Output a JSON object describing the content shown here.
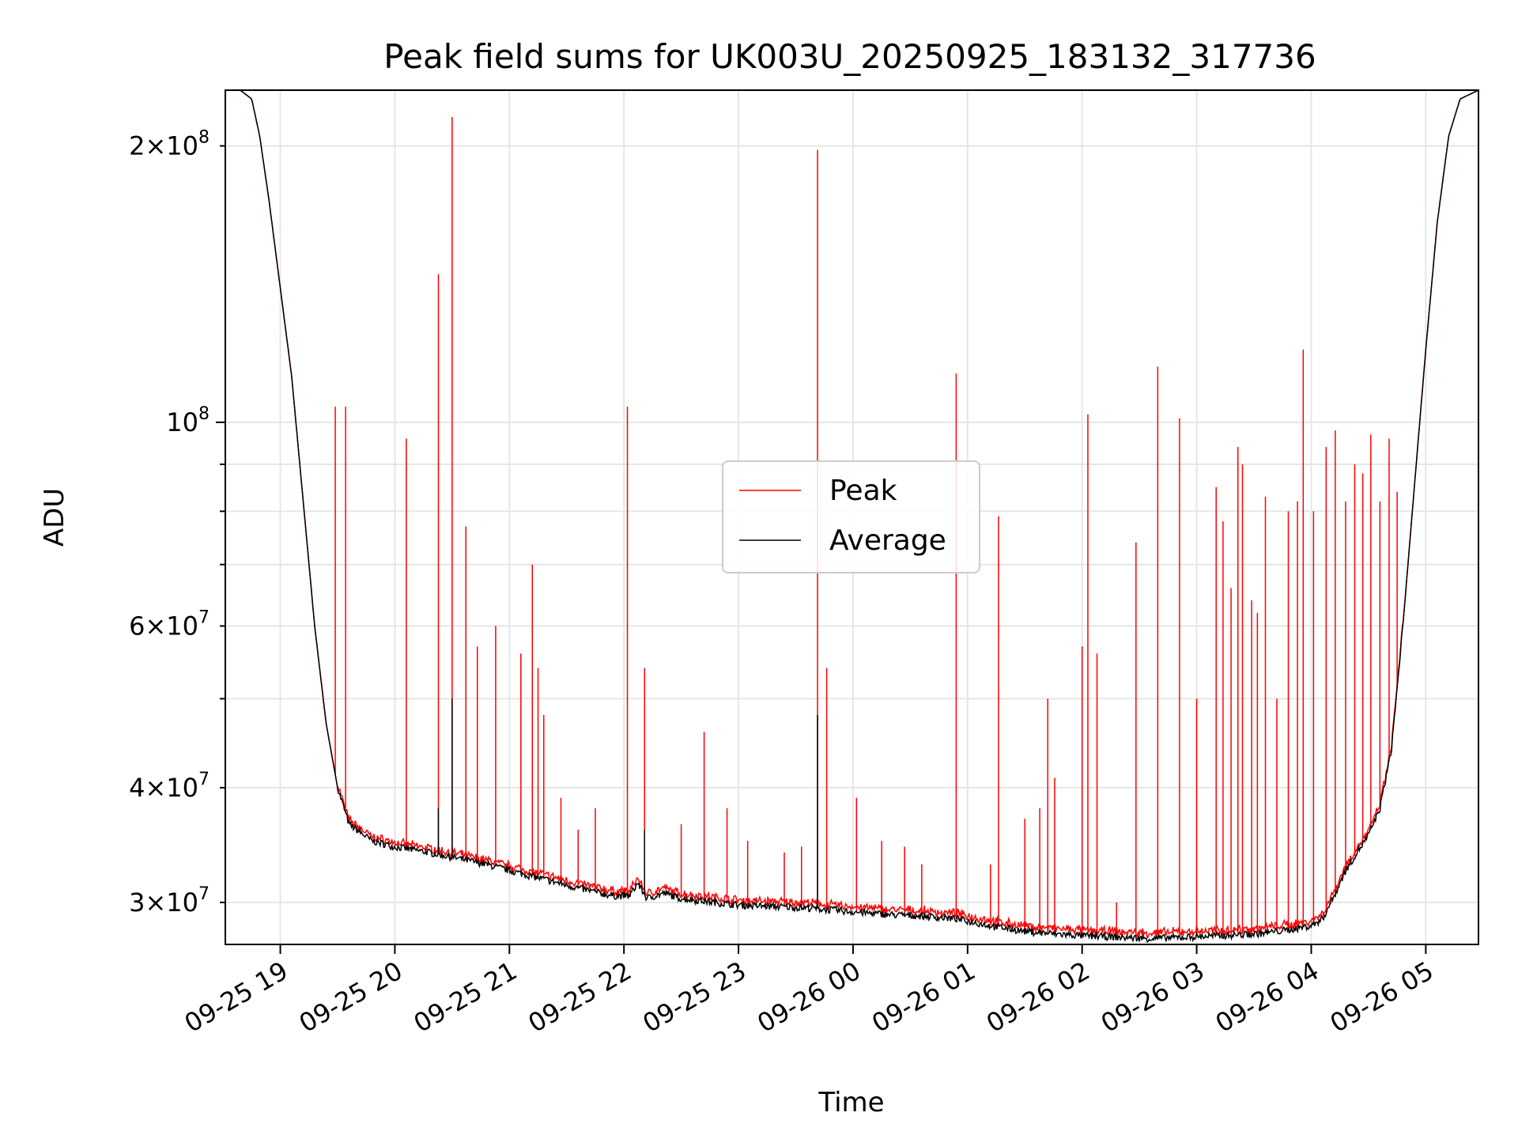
{
  "chart_data": {
    "type": "line",
    "title": "Peak field sums for UK003U_20250925_183132_317736",
    "xlabel": "Time",
    "ylabel": "ADU",
    "yscale": "log",
    "ylim": [
      27000000,
      230000000
    ],
    "xlim_hours": [
      18.52,
      29.46
    ],
    "grid": true,
    "legend": {
      "loc": "center",
      "entries": [
        "Peak",
        "Average"
      ]
    },
    "x_ticks": [
      {
        "hour": 19,
        "label": "09-25 19"
      },
      {
        "hour": 20,
        "label": "09-25 20"
      },
      {
        "hour": 21,
        "label": "09-25 21"
      },
      {
        "hour": 22,
        "label": "09-25 22"
      },
      {
        "hour": 23,
        "label": "09-25 23"
      },
      {
        "hour": 24,
        "label": "09-26 00"
      },
      {
        "hour": 25,
        "label": "09-26 01"
      },
      {
        "hour": 26,
        "label": "09-26 02"
      },
      {
        "hour": 27,
        "label": "09-26 03"
      },
      {
        "hour": 28,
        "label": "09-26 04"
      },
      {
        "hour": 29,
        "label": "09-26 05"
      }
    ],
    "y_major_ticks": [
      {
        "value": 100000000,
        "mantissa": "",
        "exp": "8"
      }
    ],
    "y_minor_labeled_ticks": [
      {
        "value": 30000000,
        "mantissa": "3",
        "exp": "7"
      },
      {
        "value": 40000000,
        "mantissa": "4",
        "exp": "7"
      },
      {
        "value": 60000000,
        "mantissa": "6",
        "exp": "7"
      },
      {
        "value": 200000000,
        "mantissa": "2",
        "exp": "8"
      }
    ],
    "y_minor_unlabeled_ticks": [
      50000000,
      70000000,
      80000000,
      90000000
    ],
    "series": [
      {
        "name": "Average",
        "color": "#000000",
        "x_hours": [
          18.52,
          18.65,
          18.75,
          18.82,
          18.9,
          19.0,
          19.1,
          19.2,
          19.3,
          19.4,
          19.5,
          19.6,
          19.8,
          20.0,
          20.3,
          20.5,
          20.8,
          21.0,
          21.3,
          21.6,
          21.9,
          22.05,
          22.12,
          22.2,
          22.35,
          22.5,
          22.8,
          23.0,
          23.3,
          23.6,
          24.0,
          24.3,
          24.6,
          24.9,
          25.2,
          25.5,
          25.8,
          26.0,
          26.3,
          26.6,
          26.9,
          27.2,
          27.5,
          27.8,
          28.0,
          28.1,
          28.2,
          28.3,
          28.4,
          28.5,
          28.6,
          28.7,
          28.8,
          28.9,
          29.0,
          29.1,
          29.2,
          29.3,
          29.46
        ],
        "values": [
          230000000,
          230000000,
          225000000,
          205000000,
          175000000,
          140000000,
          112000000,
          82000000,
          60000000,
          47000000,
          40000000,
          36500000,
          35000000,
          34500000,
          34000000,
          33600000,
          33000000,
          32500000,
          31800000,
          31100000,
          30500000,
          30500000,
          31500000,
          30300000,
          30700000,
          30300000,
          30000000,
          29800000,
          29700000,
          29600000,
          29300000,
          29100000,
          29000000,
          28800000,
          28300000,
          27900000,
          27700000,
          27600000,
          27500000,
          27400000,
          27500000,
          27600000,
          27700000,
          28000000,
          28300000,
          28800000,
          30500000,
          32500000,
          34000000,
          35500000,
          38000000,
          44000000,
          60000000,
          85000000,
          120000000,
          165000000,
          205000000,
          225000000,
          230000000
        ]
      },
      {
        "name": "Peak",
        "color": "#ff0000",
        "baseline_offset": 300000,
        "spikes": [
          [
            19.48,
            104000000
          ],
          [
            19.57,
            104000000
          ],
          [
            20.1,
            96000000
          ],
          [
            20.38,
            145000000
          ],
          [
            20.5,
            215000000
          ],
          [
            20.62,
            77000000
          ],
          [
            20.72,
            57000000
          ],
          [
            20.88,
            60000000
          ],
          [
            21.1,
            56000000
          ],
          [
            21.2,
            70000000
          ],
          [
            21.25,
            54000000
          ],
          [
            21.3,
            48000000
          ],
          [
            21.45,
            39000000
          ],
          [
            21.6,
            36000000
          ],
          [
            21.75,
            38000000
          ],
          [
            22.03,
            104000000
          ],
          [
            22.18,
            54000000
          ],
          [
            22.5,
            36500000
          ],
          [
            22.7,
            46000000
          ],
          [
            22.9,
            38000000
          ],
          [
            23.08,
            35000000
          ],
          [
            23.4,
            34000000
          ],
          [
            23.55,
            34500000
          ],
          [
            23.69,
            198000000
          ],
          [
            23.77,
            54000000
          ],
          [
            24.03,
            39000000
          ],
          [
            24.25,
            35000000
          ],
          [
            24.45,
            34500000
          ],
          [
            24.6,
            33000000
          ],
          [
            24.9,
            113000000
          ],
          [
            25.2,
            33000000
          ],
          [
            25.27,
            79000000
          ],
          [
            25.5,
            37000000
          ],
          [
            25.63,
            38000000
          ],
          [
            25.7,
            50000000
          ],
          [
            25.76,
            41000000
          ],
          [
            26.0,
            57000000
          ],
          [
            26.05,
            102000000
          ],
          [
            26.13,
            56000000
          ],
          [
            26.3,
            30000000
          ],
          [
            26.47,
            74000000
          ],
          [
            26.66,
            115000000
          ],
          [
            26.85,
            101000000
          ],
          [
            27.0,
            50000000
          ],
          [
            27.17,
            85000000
          ],
          [
            27.23,
            78000000
          ],
          [
            27.3,
            66000000
          ],
          [
            27.36,
            94000000
          ],
          [
            27.4,
            90000000
          ],
          [
            27.48,
            64000000
          ],
          [
            27.53,
            62000000
          ],
          [
            27.6,
            83000000
          ],
          [
            27.7,
            50000000
          ],
          [
            27.8,
            80000000
          ],
          [
            27.88,
            82000000
          ],
          [
            27.93,
            120000000
          ],
          [
            28.02,
            80000000
          ],
          [
            28.13,
            94000000
          ],
          [
            28.21,
            98000000
          ],
          [
            28.3,
            82000000
          ],
          [
            28.38,
            90000000
          ],
          [
            28.45,
            88000000
          ],
          [
            28.52,
            97000000
          ],
          [
            28.6,
            82000000
          ],
          [
            28.68,
            96000000
          ],
          [
            28.75,
            84000000
          ]
        ]
      }
    ]
  }
}
